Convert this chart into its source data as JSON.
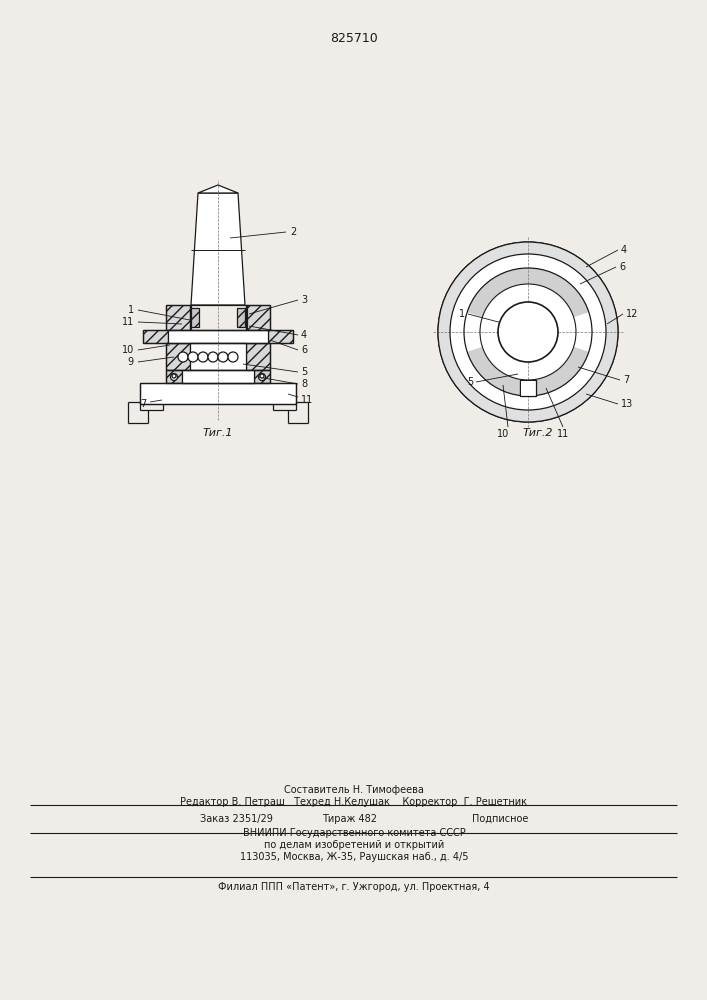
{
  "patent_number": "825710",
  "fig1_label": "Τиг.1",
  "fig2_label": "Τиг.2",
  "footer_line1": "Составитель Н. Тимофеева",
  "footer_line2": "Редактор В. Петраш   Техред Н.Келушак    Корректор  Г. Решетник",
  "footer_line3": "Заказ 2351/29    Тираж 482       Подписное",
  "footer_line4": "ВНИИПИ Государственного комитета СССР",
  "footer_line5": "по делам изобретений и открытий",
  "footer_line6": "113035, Москва, Ж-35, Раушская наб., д. 4/5",
  "footer_line7": "Филиал ППП «Патент», г. Ужгород, ул. Проектная, 4",
  "bg_color": "#f0ede8",
  "line_color": "#1a1a1a"
}
